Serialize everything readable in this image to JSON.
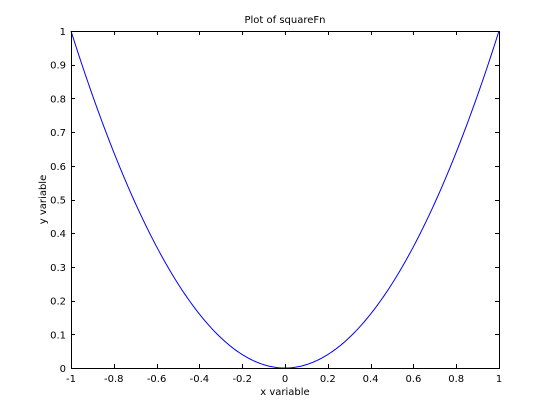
{
  "chart_data": {
    "type": "line",
    "title": "Plot of squareFn",
    "xlabel": "x variable",
    "ylabel": "y variable",
    "xlim": [
      -1,
      1
    ],
    "ylim": [
      0,
      1
    ],
    "xticks": [
      -1,
      -0.8,
      -0.6,
      -0.4,
      -0.2,
      0,
      0.2,
      0.4,
      0.6,
      0.8,
      1
    ],
    "xtick_labels": [
      "-1",
      "-0.8",
      "-0.6",
      "-0.4",
      "-0.2",
      "0",
      "0.2",
      "0.4",
      "0.6",
      "0.8",
      "1"
    ],
    "yticks": [
      0,
      0.1,
      0.2,
      0.3,
      0.4,
      0.5,
      0.6,
      0.7,
      0.8,
      0.9,
      1
    ],
    "ytick_labels": [
      "0",
      "0.1",
      "0.2",
      "0.3",
      "0.4",
      "0.5",
      "0.6",
      "0.7",
      "0.8",
      "0.9",
      "1"
    ],
    "grid": false,
    "series": [
      {
        "color": "#0000ff",
        "x": [
          -1,
          -0.9,
          -0.8,
          -0.7,
          -0.6,
          -0.5,
          -0.4,
          -0.3,
          -0.2,
          -0.1,
          0,
          0.1,
          0.2,
          0.3,
          0.4,
          0.5,
          0.6,
          0.7,
          0.8,
          0.9,
          1
        ],
        "y": [
          1,
          0.81,
          0.64,
          0.49,
          0.36,
          0.25,
          0.16,
          0.09,
          0.04,
          0.01,
          0,
          0.01,
          0.04,
          0.09,
          0.16,
          0.25,
          0.36,
          0.49,
          0.64,
          0.81,
          1
        ]
      }
    ]
  }
}
